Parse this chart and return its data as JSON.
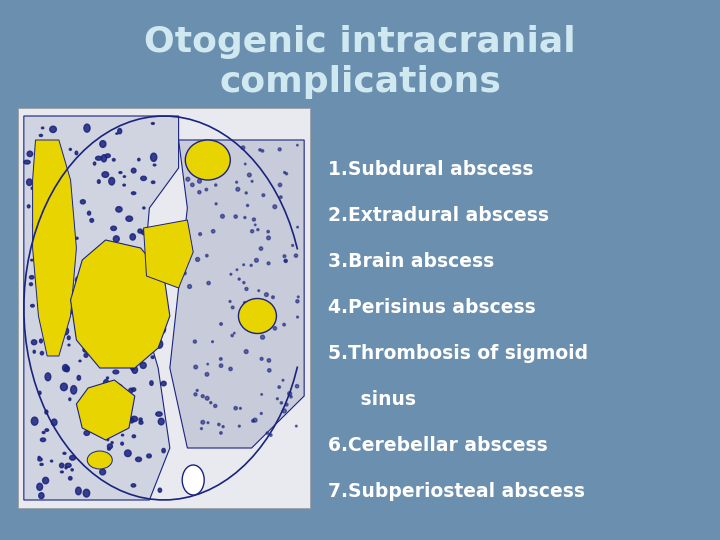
{
  "title_line1": "Otogenic intracranial",
  "title_line2": "complications",
  "title_color": "#D0E8F0",
  "title_fontsize": 26,
  "background_color": "#6A8FAF",
  "list_items": [
    "1.Subdural abscess",
    "2.Extradural abscess",
    "3.Brain abscess",
    "4.Perisinus abscess",
    "5.Thrombosis of sigmoid",
    "     sinus",
    "6.Cerebellar abscess",
    "7.Subperiosteal abscess"
  ],
  "list_color": "#FFFFFF",
  "list_fontsize": 13.5,
  "image_bg": "#E8EAF0",
  "yellow": "#E8D400",
  "dark_blue": "#1A237E"
}
